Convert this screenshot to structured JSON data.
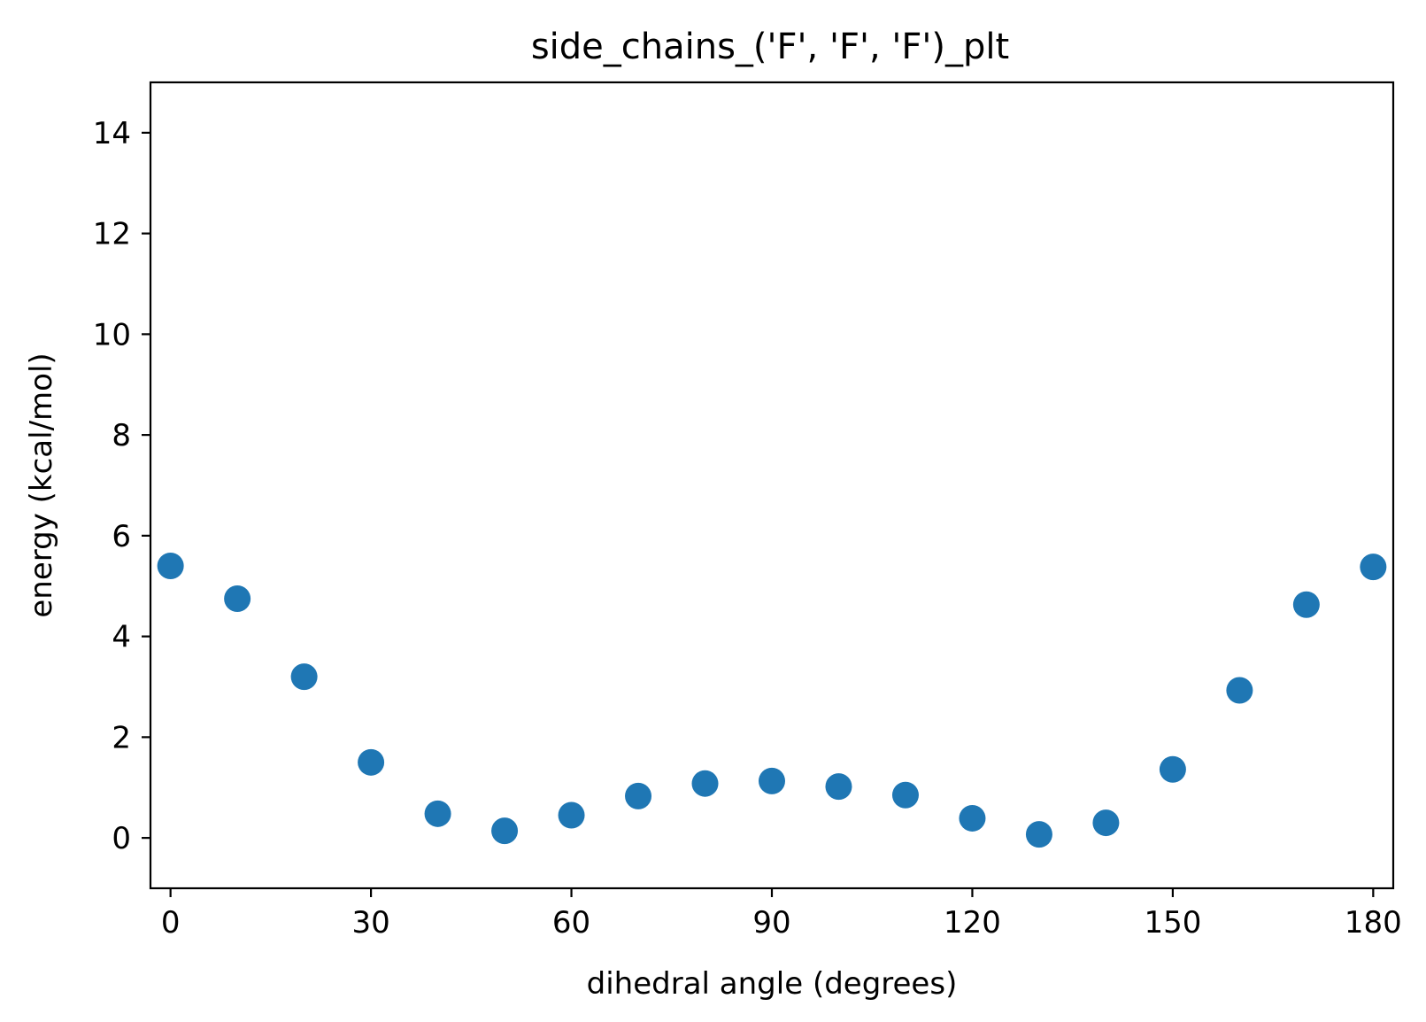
{
  "chart_data": {
    "type": "scatter",
    "title": "side_chains_('F', 'F', 'F')_plt",
    "xlabel": "dihedral angle (degrees)",
    "ylabel": "energy (kcal/mol)",
    "xlim": [
      -3,
      183
    ],
    "ylim": [
      -1,
      15
    ],
    "x_ticks": [
      0,
      30,
      60,
      90,
      120,
      150,
      180
    ],
    "x_tick_labels": [
      "0",
      "30",
      "60",
      "90",
      "120",
      "150",
      "180"
    ],
    "y_ticks": [
      0,
      2,
      4,
      6,
      8,
      10,
      12,
      14
    ],
    "y_tick_labels": [
      "0",
      "2",
      "4",
      "6",
      "8",
      "10",
      "12",
      "14"
    ],
    "grid": false,
    "series": [
      {
        "color": "#1f77b4",
        "x": [
          0,
          10,
          20,
          30,
          40,
          50,
          60,
          70,
          80,
          90,
          100,
          110,
          120,
          130,
          140,
          150,
          160,
          170,
          180
        ],
        "y": [
          5.4,
          4.75,
          3.2,
          1.5,
          0.48,
          0.14,
          0.45,
          0.83,
          1.08,
          1.13,
          1.02,
          0.85,
          0.39,
          0.07,
          0.3,
          1.36,
          2.93,
          4.63,
          5.38
        ]
      }
    ]
  }
}
